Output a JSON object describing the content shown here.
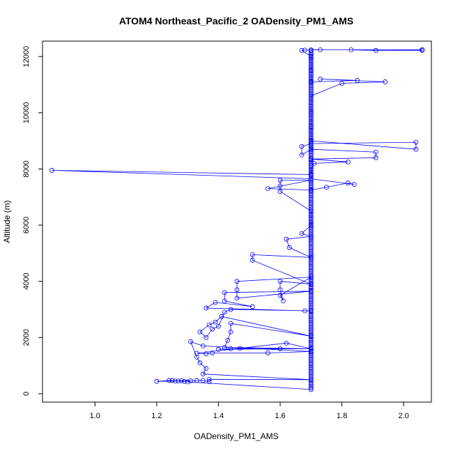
{
  "chart_data": {
    "type": "scatter",
    "title": "ATOM4 Northeast_Pacific_2 OADensity_PM1_AMS",
    "xlabel": "OADensity_PM1_AMS",
    "ylabel": "Altitude (m)",
    "xlim": [
      0.83,
      2.09
    ],
    "ylim": [
      -300,
      12550
    ],
    "xticks": [
      "1.0",
      "1.2",
      "1.4",
      "1.6",
      "1.8",
      "2.0"
    ],
    "xtick_values": [
      1.0,
      1.2,
      1.4,
      1.6,
      1.8,
      2.0
    ],
    "yticks": [
      "0",
      "2000",
      "4000",
      "6000",
      "8000",
      "10000",
      "12000"
    ],
    "ytick_values": [
      0,
      2000,
      4000,
      6000,
      8000,
      10000,
      12000
    ],
    "marker": "open-circle",
    "connected": true,
    "color": "#0000ff",
    "series": [
      {
        "points": [
          [
            1.7,
            150
          ],
          [
            1.3,
            420
          ],
          [
            1.31,
            460
          ],
          [
            1.29,
            440
          ],
          [
            1.27,
            450
          ],
          [
            1.25,
            470
          ],
          [
            1.24,
            470
          ],
          [
            1.2,
            440
          ],
          [
            1.26,
            450
          ],
          [
            1.28,
            460
          ],
          [
            1.33,
            470
          ],
          [
            1.35,
            470
          ],
          [
            1.37,
            430
          ],
          [
            1.37,
            510
          ],
          [
            1.7,
            500
          ],
          [
            1.35,
            700
          ],
          [
            1.36,
            900
          ],
          [
            1.34,
            1100
          ],
          [
            1.33,
            1300
          ],
          [
            1.31,
            1850
          ],
          [
            1.35,
            1700
          ],
          [
            1.7,
            1500
          ],
          [
            1.56,
            1450
          ],
          [
            1.38,
            1450
          ],
          [
            1.36,
            1420
          ],
          [
            1.33,
            1440
          ],
          [
            1.62,
            1800
          ],
          [
            1.7,
            1600
          ],
          [
            1.4,
            1580
          ],
          [
            1.44,
            1600
          ],
          [
            1.47,
            1610
          ],
          [
            1.6,
            1600
          ],
          [
            1.7,
            1600
          ],
          [
            1.42,
            1650
          ],
          [
            1.43,
            1900
          ],
          [
            1.44,
            2200
          ],
          [
            1.44,
            2500
          ],
          [
            1.7,
            2050
          ],
          [
            1.41,
            2750
          ],
          [
            1.39,
            2550
          ],
          [
            1.37,
            2450
          ],
          [
            1.34,
            2200
          ],
          [
            1.36,
            2000
          ],
          [
            1.38,
            2300
          ],
          [
            1.4,
            2400
          ],
          [
            1.42,
            2900
          ],
          [
            1.44,
            3000
          ],
          [
            1.7,
            2950
          ],
          [
            1.68,
            2950
          ],
          [
            1.36,
            3050
          ],
          [
            1.39,
            3250
          ],
          [
            1.51,
            3100
          ],
          [
            1.42,
            3300
          ],
          [
            1.42,
            3600
          ],
          [
            1.7,
            3650
          ],
          [
            1.46,
            3400
          ],
          [
            1.46,
            3700
          ],
          [
            1.46,
            4000
          ],
          [
            1.7,
            4150
          ],
          [
            1.6,
            3500
          ],
          [
            1.61,
            3300
          ],
          [
            1.6,
            3700
          ],
          [
            1.6,
            4000
          ],
          [
            1.7,
            3900
          ],
          [
            1.51,
            4750
          ],
          [
            1.51,
            4950
          ],
          [
            1.7,
            4850
          ],
          [
            1.63,
            5200
          ],
          [
            1.62,
            5500
          ],
          [
            1.7,
            5600
          ],
          [
            1.67,
            5700
          ],
          [
            1.7,
            6000
          ],
          [
            1.7,
            6500
          ],
          [
            1.6,
            7200
          ],
          [
            1.6,
            7400
          ],
          [
            1.6,
            7600
          ],
          [
            1.7,
            7600
          ],
          [
            1.56,
            7300
          ],
          [
            1.7,
            7250
          ],
          [
            1.75,
            7350
          ],
          [
            1.82,
            7500
          ],
          [
            1.84,
            7450
          ],
          [
            1.7,
            7650
          ],
          [
            0.86,
            7950
          ],
          [
            1.7,
            7800
          ],
          [
            1.7,
            8000
          ],
          [
            1.71,
            8200
          ],
          [
            1.82,
            8250
          ],
          [
            1.7,
            8350
          ],
          [
            1.91,
            8400
          ],
          [
            1.91,
            8600
          ],
          [
            1.7,
            8700
          ],
          [
            1.67,
            8500
          ],
          [
            1.67,
            8800
          ],
          [
            1.7,
            8900
          ],
          [
            2.04,
            8950
          ],
          [
            2.04,
            8700
          ],
          [
            1.7,
            9000
          ],
          [
            1.7,
            9500
          ],
          [
            1.7,
            10000
          ],
          [
            1.7,
            10600
          ],
          [
            1.8,
            11050
          ],
          [
            1.94,
            11100
          ],
          [
            1.73,
            11200
          ],
          [
            1.85,
            11150
          ],
          [
            1.7,
            11100
          ],
          [
            1.7,
            11500
          ],
          [
            1.7,
            12000
          ],
          [
            1.67,
            12220
          ],
          [
            1.68,
            12230
          ],
          [
            1.73,
            12240
          ],
          [
            1.83,
            12240
          ],
          [
            1.91,
            12220
          ],
          [
            2.06,
            12220
          ],
          [
            2.06,
            12250
          ],
          [
            1.7,
            12240
          ]
        ]
      }
    ]
  }
}
